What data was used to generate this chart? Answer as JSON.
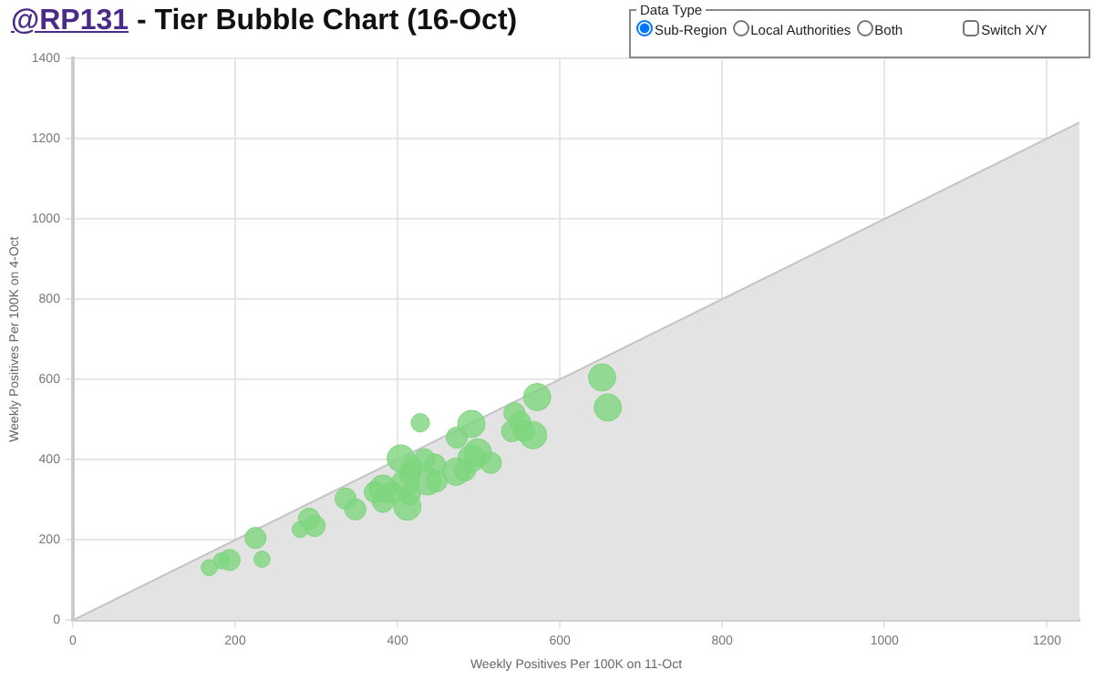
{
  "chart_data": {
    "type": "bubble",
    "title": "@RP131 - Tier Bubble Chart (16-Oct)",
    "xlabel": "Weekly Positives Per 100K on 11-Oct",
    "ylabel": "Weekly Positives Per 100K on 4-Oct",
    "annotations": [
      "Data Type",
      "Sub-Region",
      "Local Authorities",
      "Both",
      "Switch X/Y"
    ],
    "xlim": [
      0,
      1240
    ],
    "ylim": [
      0,
      1400
    ],
    "xticks": [
      0,
      200,
      400,
      600,
      800,
      1000,
      1200
    ],
    "yticks": [
      0,
      200,
      400,
      600,
      800,
      1000,
      1200,
      1400
    ],
    "grid": true,
    "legend": false,
    "series": [
      {
        "type": "area",
        "color": "#e3e3e3",
        "x": [
          0,
          1240
        ],
        "values": [
          0,
          1240
        ]
      },
      {
        "color": "#7ed67e",
        "x": [
          168,
          183,
          193,
          225,
          233,
          280,
          291,
          298,
          336,
          348,
          372,
          382,
          382,
          393,
          404,
          410,
          412,
          415,
          418,
          428,
          433,
          437,
          446,
          448,
          472,
          473,
          483,
          491,
          491,
          499,
          515,
          544,
          541,
          551,
          556,
          567,
          572,
          652,
          659,
          415
        ],
        "values": [
          131,
          148,
          150,
          205,
          152,
          226,
          253,
          235,
          303,
          276,
          319,
          328,
          295,
          318,
          403,
          343,
          283,
          313,
          381,
          492,
          401,
          346,
          388,
          346,
          370,
          455,
          373,
          489,
          403,
          418,
          392,
          516,
          471,
          494,
          471,
          461,
          556,
          605,
          530,
          366
        ],
        "sizes": [
          0.35,
          0.35,
          0.6,
          0.6,
          0.35,
          0.35,
          0.6,
          0.6,
          0.6,
          0.6,
          0.6,
          1,
          0.6,
          0.6,
          1,
          1,
          1,
          0.6,
          0.6,
          0.45,
          0.6,
          1,
          0.6,
          0.6,
          1,
          0.6,
          0.6,
          1,
          1,
          1,
          0.6,
          0.6,
          0.6,
          0.6,
          0.6,
          1,
          1,
          1,
          1,
          0.6
        ]
      }
    ]
  }
}
